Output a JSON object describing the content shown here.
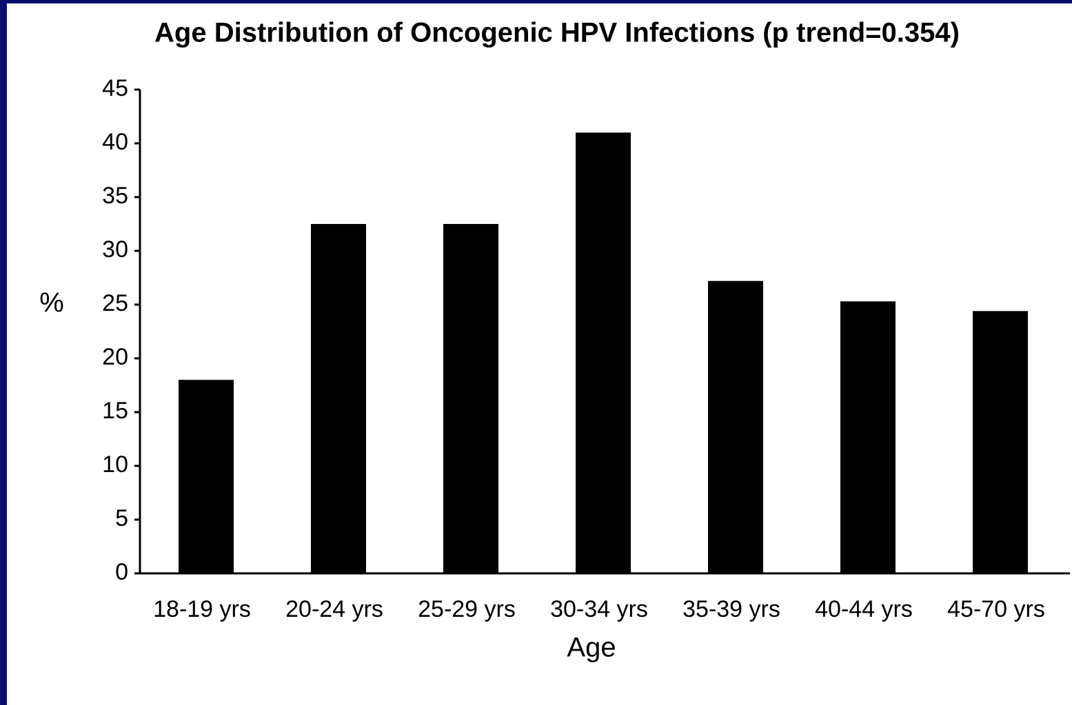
{
  "chart_data": {
    "type": "bar",
    "title": "Age Distribution of Oncogenic HPV Infections (p trend=0.354)",
    "categories": [
      "18-19 yrs",
      "20-24 yrs",
      "25-29 yrs",
      "30-34 yrs",
      "35-39 yrs",
      "40-44 yrs",
      "45-70 yrs"
    ],
    "values": [
      18,
      32.5,
      32.5,
      41,
      27.2,
      25.3,
      24.4
    ],
    "color": "#000000",
    "x_label": "Age",
    "y_label": "%",
    "ylim": [
      0,
      45
    ],
    "yticks": [
      0,
      5,
      10,
      15,
      20,
      25,
      30,
      35,
      40,
      45
    ],
    "grid": false
  }
}
